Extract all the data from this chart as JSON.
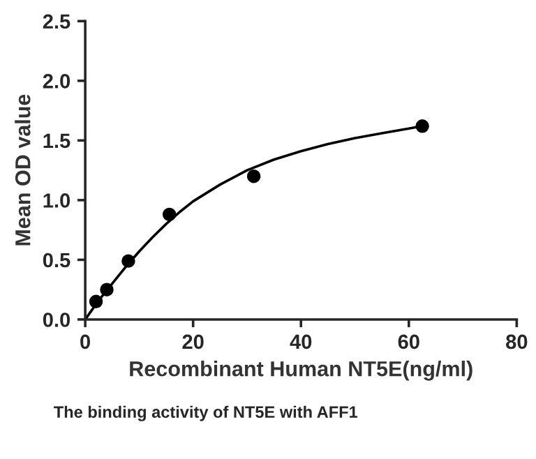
{
  "chart_data": {
    "type": "scatter",
    "xlabel": "Recombinant Human NT5E(ng/ml)",
    "ylabel": "Mean OD value",
    "annotations": [
      "The binding activity of NT5E with AFF1"
    ],
    "series": [
      {
        "color": "#000000",
        "marker": "circle",
        "x": [
          2,
          4,
          8,
          15.6,
          31.25,
          62.5
        ],
        "values": [
          0.15,
          0.25,
          0.49,
          0.88,
          1.2,
          1.62
        ]
      },
      {
        "type": "line",
        "color": "#000000",
        "marker": "none",
        "line_style": "solid",
        "x": [
          0,
          2.5,
          5,
          7.5,
          10,
          12.5,
          15,
          17.5,
          20,
          25,
          30,
          35,
          40,
          45,
          50,
          55,
          60,
          62.5
        ],
        "values": [
          0,
          0.16,
          0.3,
          0.44,
          0.57,
          0.69,
          0.8,
          0.9,
          0.99,
          1.13,
          1.25,
          1.34,
          1.41,
          1.47,
          1.52,
          1.56,
          1.6,
          1.62
        ]
      }
    ],
    "xlim": [
      0,
      80
    ],
    "xticks": [
      0,
      20,
      40,
      60,
      80
    ],
    "ylim": [
      0,
      2.5
    ],
    "yticks": [
      {
        "value": 0,
        "label": "0.0"
      },
      0.5,
      {
        "value": 1,
        "label": "1.0"
      },
      1.5,
      {
        "value": 2,
        "label": "2.0"
      },
      2.5
    ],
    "grid": false,
    "legend": false
  }
}
